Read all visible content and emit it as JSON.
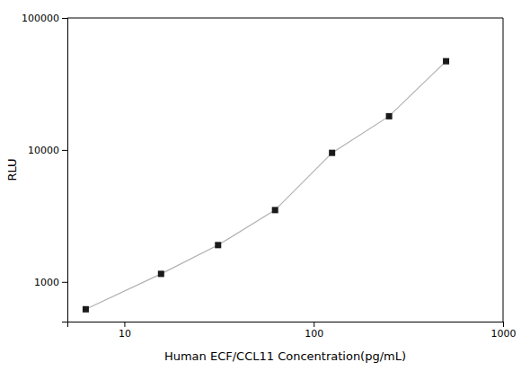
{
  "chart_data": {
    "type": "line",
    "x": [
      6.25,
      15.625,
      31.25,
      62.5,
      125,
      250,
      500
    ],
    "values": [
      620,
      1150,
      1900,
      3500,
      9500,
      18000,
      47000
    ],
    "xlabel": "Human ECF/CCL11 Concentration(pg/mL)",
    "ylabel": "RLU",
    "xlim": [
      5,
      1000
    ],
    "ylim": [
      500,
      100000
    ],
    "xticks": [
      10,
      100,
      1000
    ],
    "yticks": [
      1000,
      10000,
      100000
    ],
    "log": true,
    "grid": false,
    "marker": "square",
    "color": "#1a1a1a"
  }
}
